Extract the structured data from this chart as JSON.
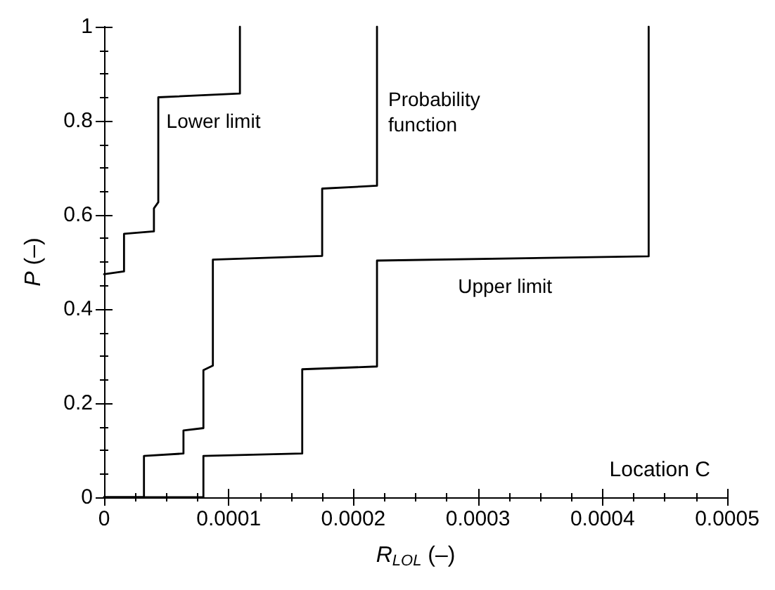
{
  "chart_data": {
    "type": "line",
    "xlabel": "R$_{LOL}$ (–)",
    "ylabel": "P (–)",
    "xlim": [
      0,
      0.0005
    ],
    "xticks": [
      0,
      0.0001,
      0.0002,
      0.0003,
      0.0004,
      0.0005
    ],
    "ylim": [
      0,
      1
    ],
    "yticks": [
      0,
      0.2,
      0.4,
      0.6,
      0.8,
      1
    ],
    "grid": false,
    "marker": "none",
    "line_style": "solid",
    "series": [
      {
        "name": "Lower limit",
        "color": "#000000",
        "x": [
          0,
          1.6e-05,
          1.6e-05,
          4e-05,
          4e-05,
          4.35e-05,
          4.35e-05,
          0.000109,
          0.000109
        ],
        "values": [
          0.474,
          0.48,
          0.56,
          0.565,
          0.614,
          0.627,
          0.85,
          0.858,
          1
        ]
      },
      {
        "name": "Probability function",
        "color": "#000000",
        "x": [
          0,
          3.2e-05,
          3.2e-05,
          6.37e-05,
          6.37e-05,
          7.97e-05,
          7.97e-05,
          8.73e-05,
          8.73e-05,
          0.000175,
          0.000175,
          0.000219,
          0.000219
        ],
        "values": [
          0,
          0,
          0.088,
          0.093,
          0.142,
          0.147,
          0.27,
          0.28,
          0.505,
          0.513,
          0.656,
          0.662,
          1
        ]
      },
      {
        "name": "Upper limit",
        "color": "#000000",
        "x": [
          0,
          7.97e-05,
          7.97e-05,
          0.000159,
          0.000159,
          0.000219,
          0.000219,
          0.000437,
          0.000437
        ],
        "values": [
          0,
          0,
          0.088,
          0.093,
          0.272,
          0.278,
          0.503,
          0.512,
          1
        ]
      }
    ],
    "annotations": [
      "Location C"
    ]
  }
}
